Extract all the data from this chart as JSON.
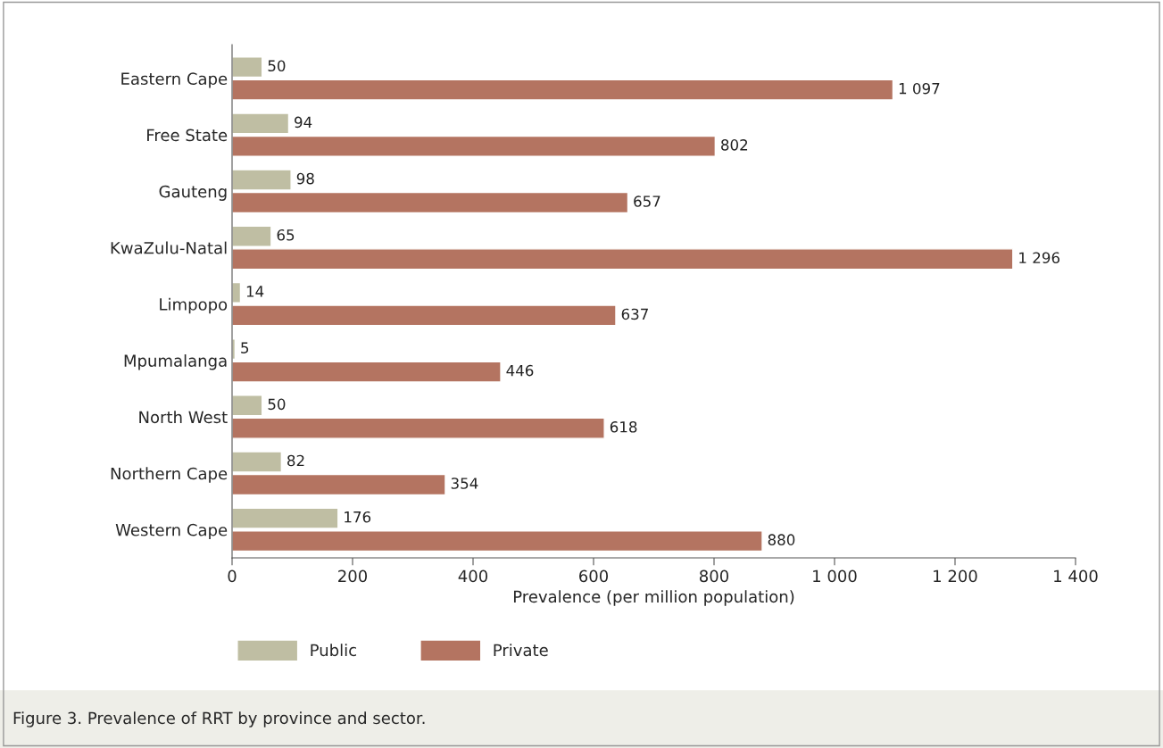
{
  "chart_data": {
    "type": "bar",
    "orientation": "horizontal",
    "xlabel": "Prevalence (per million population)",
    "categories": [
      "Eastern Cape",
      "Free State",
      "Gauteng",
      "KwaZulu-Natal",
      "Limpopo",
      "Mpumalanga",
      "North West",
      "Northern Cape",
      "Western Cape"
    ],
    "series": [
      {
        "name": "Public",
        "color": "#bfbea3",
        "values": [
          50,
          94,
          98,
          65,
          14,
          5,
          50,
          82,
          176
        ],
        "value_labels": [
          "50",
          "94",
          "98",
          "65",
          "14",
          "5",
          "50",
          "82",
          "176"
        ]
      },
      {
        "name": "Private",
        "color": "#b47461",
        "values": [
          1097,
          802,
          657,
          1296,
          637,
          446,
          618,
          354,
          880
        ],
        "value_labels": [
          "1 097",
          "802",
          "657",
          "1 296",
          "637",
          "446",
          "618",
          "354",
          "880"
        ]
      }
    ],
    "xlim": [
      0,
      1400
    ],
    "xticks": [
      0,
      200,
      400,
      600,
      800,
      {
        "value": 1000,
        "label": "1 000"
      },
      {
        "value": 1200,
        "label": "1 200"
      },
      {
        "value": 1400,
        "label": "1 400"
      }
    ],
    "legend": "bottom left",
    "grid": false,
    "annotations": [
      "Figure 3. Prevalence of RRT by province and sector."
    ]
  }
}
